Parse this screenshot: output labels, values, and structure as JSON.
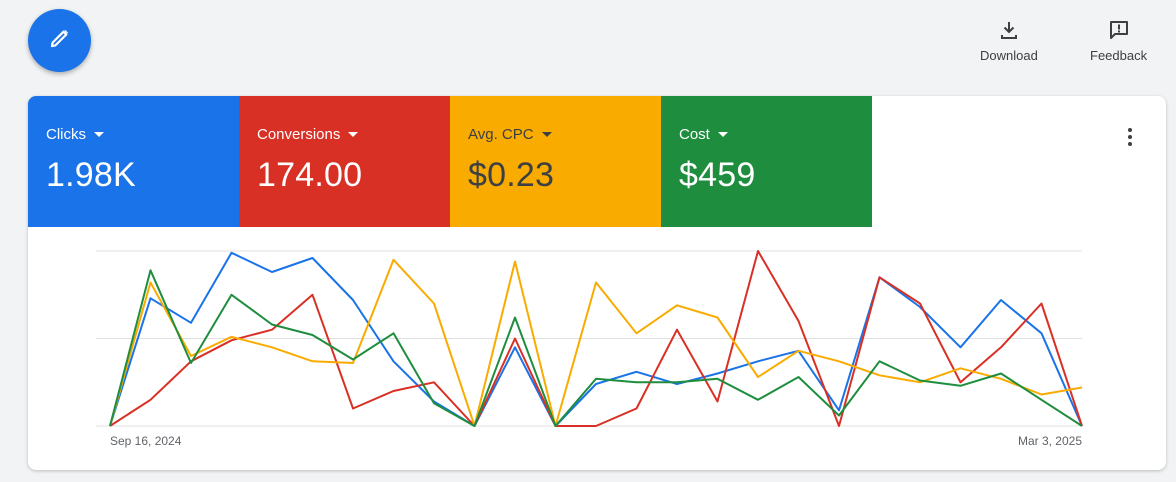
{
  "toolbar": {
    "edit_icon": "pencil-icon",
    "download": {
      "label": "Download",
      "icon": "download-icon"
    },
    "feedback": {
      "label": "Feedback",
      "icon": "feedback-icon"
    }
  },
  "metrics": [
    {
      "label": "Clicks",
      "value": "1.98K",
      "color": "#1a73e8"
    },
    {
      "label": "Conversions",
      "value": "174.00",
      "color": "#d93025"
    },
    {
      "label": "Avg. CPC",
      "value": "$0.23",
      "color": "#f9ab00"
    },
    {
      "label": "Cost",
      "value": "$459",
      "color": "#1e8e3e"
    }
  ],
  "chart_data": {
    "type": "line",
    "x_start_label": "Sep 16, 2024",
    "x_end_label": "Mar 3, 2025",
    "grid": true,
    "series": [
      {
        "color": "#1a73e8",
        "values": [
          0,
          73,
          59,
          99,
          88,
          96,
          72,
          37,
          14,
          0,
          45,
          0,
          24,
          31,
          24,
          30,
          37,
          43,
          9,
          85,
          68,
          45,
          72,
          53,
          0
        ]
      },
      {
        "color": "#d93025",
        "values": [
          0,
          15,
          37,
          49,
          55,
          75,
          10,
          20,
          25,
          0,
          50,
          0,
          0,
          10,
          55,
          14,
          100,
          60,
          0,
          85,
          70,
          25,
          45,
          70,
          0
        ]
      },
      {
        "color": "#f9ab00",
        "values": [
          0,
          82,
          40,
          51,
          45,
          37,
          36,
          95,
          70,
          0,
          94,
          0,
          82,
          53,
          69,
          62,
          28,
          43,
          37,
          29,
          25,
          33,
          27,
          18,
          22
        ]
      },
      {
        "color": "#1e8e3e",
        "values": [
          0,
          89,
          36,
          75,
          58,
          52,
          38,
          53,
          13,
          0,
          62,
          0,
          27,
          25,
          25,
          27,
          15,
          28,
          6,
          37,
          26,
          23,
          30,
          15,
          0
        ]
      }
    ]
  }
}
